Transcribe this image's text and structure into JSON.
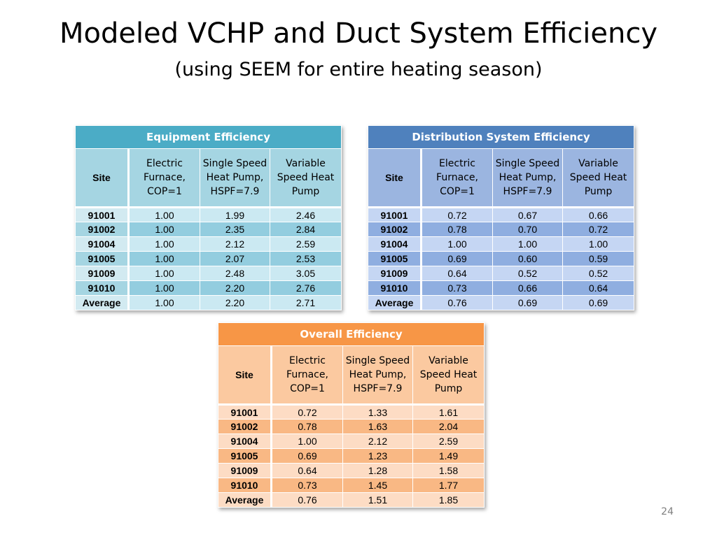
{
  "slide": {
    "title": "Modeled VCHP and Duct System Efficiency",
    "subtitle": "(using SEEM for entire heating season)",
    "page_number": "24"
  },
  "columns": {
    "site": "Site",
    "electric": "Electric Furnace, COP=1",
    "single": "Single Speed Heat Pump, HSPF=7.9",
    "variable": "Variable Speed Heat Pump"
  },
  "equipment": {
    "title": "Equipment Efficiency",
    "color": "#4bacc6",
    "rows": [
      {
        "site": "91001",
        "electric": "1.00",
        "single": "1.99",
        "variable": "2.46"
      },
      {
        "site": "91002",
        "electric": "1.00",
        "single": "2.35",
        "variable": "2.84"
      },
      {
        "site": "91004",
        "electric": "1.00",
        "single": "2.12",
        "variable": "2.59"
      },
      {
        "site": "91005",
        "electric": "1.00",
        "single": "2.07",
        "variable": "2.53"
      },
      {
        "site": "91009",
        "electric": "1.00",
        "single": "2.48",
        "variable": "3.05"
      },
      {
        "site": "91010",
        "electric": "1.00",
        "single": "2.20",
        "variable": "2.76"
      },
      {
        "site": "Average",
        "electric": "1.00",
        "single": "2.20",
        "variable": "2.71"
      }
    ]
  },
  "distribution": {
    "title": "Distribution System Efficiency",
    "color": "#4f81bd",
    "rows": [
      {
        "site": "91001",
        "electric": "0.72",
        "single": "0.67",
        "variable": "0.66"
      },
      {
        "site": "91002",
        "electric": "0.78",
        "single": "0.70",
        "variable": "0.72"
      },
      {
        "site": "91004",
        "electric": "1.00",
        "single": "1.00",
        "variable": "1.00"
      },
      {
        "site": "91005",
        "electric": "0.69",
        "single": "0.60",
        "variable": "0.59"
      },
      {
        "site": "91009",
        "electric": "0.64",
        "single": "0.52",
        "variable": "0.52"
      },
      {
        "site": "91010",
        "electric": "0.73",
        "single": "0.66",
        "variable": "0.64"
      },
      {
        "site": "Average",
        "electric": "0.76",
        "single": "0.69",
        "variable": "0.69"
      }
    ]
  },
  "overall": {
    "title": "Overall Efficiency",
    "color": "#f79646",
    "rows": [
      {
        "site": "91001",
        "electric": "0.72",
        "single": "1.33",
        "variable": "1.61"
      },
      {
        "site": "91002",
        "electric": "0.78",
        "single": "1.63",
        "variable": "2.04"
      },
      {
        "site": "91004",
        "electric": "1.00",
        "single": "2.12",
        "variable": "2.59"
      },
      {
        "site": "91005",
        "electric": "0.69",
        "single": "1.23",
        "variable": "1.49"
      },
      {
        "site": "91009",
        "electric": "0.64",
        "single": "1.28",
        "variable": "1.58"
      },
      {
        "site": "91010",
        "electric": "0.73",
        "single": "1.45",
        "variable": "1.77"
      },
      {
        "site": "Average",
        "electric": "0.76",
        "single": "1.51",
        "variable": "1.85"
      }
    ]
  }
}
